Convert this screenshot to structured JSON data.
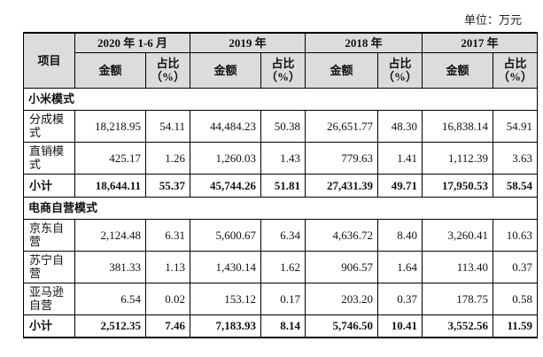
{
  "unit_note": "单位：万元",
  "header": {
    "item": "项目",
    "periods": [
      "2020 年 1-6 月",
      "2019 年",
      "2018 年",
      "2017 年"
    ],
    "amount": "金额",
    "share": "占比（%）"
  },
  "sections": [
    {
      "title": "小米模式",
      "rows": [
        {
          "label": "分成模式",
          "values": [
            "18,218.95",
            "54.11",
            "44,484.23",
            "50.38",
            "26,651.77",
            "48.30",
            "16,838.14",
            "54.91"
          ]
        },
        {
          "label": "直销模式",
          "values": [
            "425.17",
            "1.26",
            "1,260.03",
            "1.43",
            "779.63",
            "1.41",
            "1,112.39",
            "3.63"
          ]
        }
      ],
      "subtotal": {
        "label": "小计",
        "values": [
          "18,644.11",
          "55.37",
          "45,744.26",
          "51.81",
          "27,431.39",
          "49.71",
          "17,950.53",
          "58.54"
        ]
      }
    },
    {
      "title": "电商自营模式",
      "rows": [
        {
          "label": "京东自营",
          "values": [
            "2,124.48",
            "6.31",
            "5,600.67",
            "6.34",
            "4,636.72",
            "8.40",
            "3,260.41",
            "10.63"
          ]
        },
        {
          "label": "苏宁自营",
          "values": [
            "381.33",
            "1.13",
            "1,430.14",
            "1.62",
            "906.57",
            "1.64",
            "113.40",
            "0.37"
          ]
        },
        {
          "label": "亚马逊自营",
          "values": [
            "6.54",
            "0.02",
            "153.12",
            "0.17",
            "203.20",
            "0.37",
            "178.75",
            "0.58"
          ]
        }
      ],
      "subtotal": {
        "label": "小计",
        "values": [
          "2,512.35",
          "7.46",
          "7,183.93",
          "8.14",
          "5,746.50",
          "10.41",
          "3,552.56",
          "11.59"
        ]
      }
    }
  ]
}
